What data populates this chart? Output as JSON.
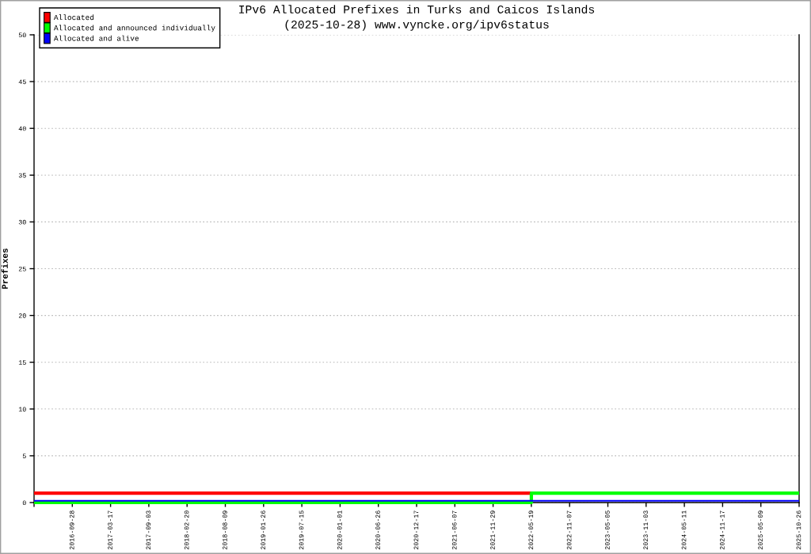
{
  "chart_data": {
    "type": "step",
    "title": "IPv6 Allocated Prefixes in Turks and Caicos Islands",
    "subtitle": "(2025-10-28) www.vyncke.org/ipv6status",
    "ylabel": "Prefixes",
    "categories": [
      null,
      "2016-09-28",
      "2017-03-17",
      "2017-09-03",
      "2018-02-20",
      "2018-08-09",
      "2019-01-26",
      "2019-07-15",
      "2020-01-01",
      "2020-06-26",
      "2020-12-17",
      "2021-06-07",
      "2021-11-29",
      "2022-05-19",
      "2022-11-07",
      "2023-05-05",
      "2023-11-03",
      "2024-05-11",
      "2024-11-17",
      "2025-05-09",
      "2025-10-26"
    ],
    "series": [
      {
        "name": "Allocated",
        "color": "#ff0000",
        "values": [
          1,
          1,
          1,
          1,
          1,
          1,
          1,
          1,
          1,
          1,
          1,
          1,
          1,
          1,
          null,
          null,
          null,
          null,
          null,
          null,
          null
        ]
      },
      {
        "name": "Allocated and announced individually",
        "color": "#00ff00",
        "values": [
          0,
          0,
          0,
          0,
          0,
          0,
          0,
          0,
          0,
          0,
          0,
          0,
          0,
          0,
          1,
          1,
          1,
          1,
          1,
          1,
          1
        ]
      },
      {
        "name": "Allocated and alive",
        "color": "#0000ff",
        "values": [
          0,
          0,
          0,
          0,
          0,
          0,
          0,
          0,
          0,
          0,
          0,
          0,
          0,
          0,
          0,
          0,
          0,
          0,
          0,
          0,
          0
        ]
      }
    ],
    "ylim": [
      0,
      50
    ],
    "yticks": [
      0,
      5,
      10,
      15,
      20,
      25,
      30,
      35,
      40,
      45,
      50
    ],
    "grid": true,
    "legend": "top left"
  }
}
